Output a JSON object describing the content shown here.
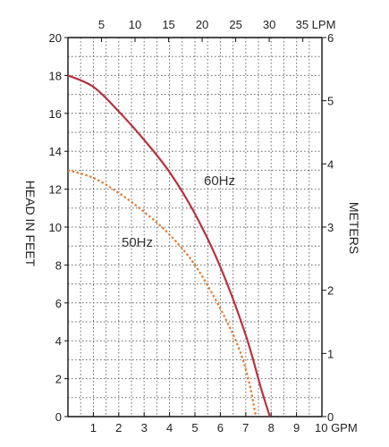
{
  "chart_data": {
    "type": "line",
    "x_bottom": {
      "label": "GPM",
      "range": [
        0,
        10
      ],
      "ticks": [
        0,
        1,
        2,
        3,
        4,
        5,
        6,
        7,
        8,
        9,
        10
      ],
      "last_tick_text": "10 GPM"
    },
    "x_top": {
      "label": "LPM",
      "ticks": [
        5,
        10,
        15,
        20,
        25,
        30,
        35
      ],
      "last_tick_text": "35 LPM"
    },
    "y_left": {
      "label": "HEAD IN FEET",
      "range": [
        0,
        20
      ],
      "ticks": [
        0,
        2,
        4,
        6,
        8,
        10,
        12,
        14,
        16,
        18,
        20
      ]
    },
    "y_right": {
      "label": "METERS",
      "range": [
        0,
        6
      ],
      "ticks": [
        0,
        1,
        2,
        3,
        4,
        5,
        6
      ]
    },
    "grid": true,
    "series": [
      {
        "name": "60Hz",
        "color": "#b83240",
        "style": "solid",
        "points": [
          [
            0,
            18
          ],
          [
            1,
            17.4
          ],
          [
            2,
            16.1
          ],
          [
            3,
            14.6
          ],
          [
            4,
            12.9
          ],
          [
            5,
            10.7
          ],
          [
            6,
            7.9
          ],
          [
            7,
            4.3
          ],
          [
            7.6,
            1.5
          ],
          [
            7.95,
            0
          ]
        ]
      },
      {
        "name": "50Hz",
        "color": "#e07a30",
        "style": "dotted",
        "points": [
          [
            0,
            13
          ],
          [
            1,
            12.6
          ],
          [
            2,
            11.8
          ],
          [
            3,
            10.8
          ],
          [
            4,
            9.6
          ],
          [
            5,
            8.0
          ],
          [
            6,
            5.7
          ],
          [
            6.7,
            3.7
          ],
          [
            7.1,
            2.0
          ],
          [
            7.4,
            0
          ]
        ]
      }
    ],
    "annotations": [
      {
        "text": "60Hz",
        "x": 5.6,
        "y": 12.2
      },
      {
        "text": "50Hz",
        "x": 2.8,
        "y": 9.1
      }
    ]
  }
}
